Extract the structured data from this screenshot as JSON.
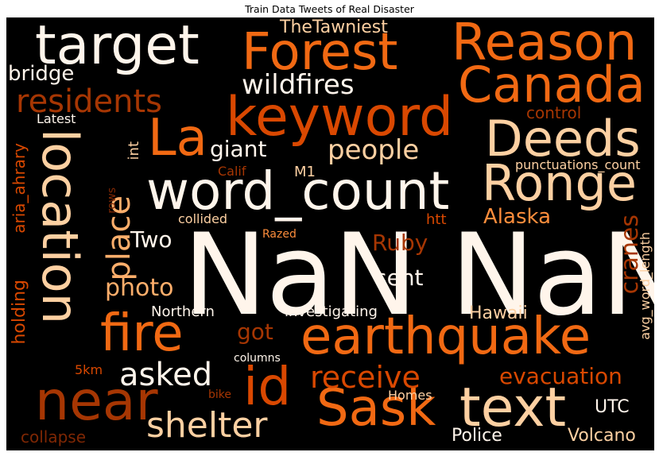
{
  "title": "Train Data Tweets of Real Disaster",
  "palette": {
    "lightest": "#fff5eb",
    "light": "#fdd0a2",
    "mid_light": "#fdae6b",
    "mid": "#fd8d3c",
    "orange": "#f16913",
    "dark_orange": "#d94801",
    "brown": "#a63603",
    "dark_brown": "#7f2704",
    "background": "#000000"
  },
  "words": {
    "nan_nan": "NaN NaN",
    "word_count": "word_count",
    "location": "location",
    "earthquake": "earthquake",
    "keyword": "keyword",
    "forest": "Forest",
    "reason": "Reason",
    "canada": "Canada",
    "target": "target",
    "deeds": "Deeds",
    "ronge": "Ronge",
    "text": "text",
    "near": "near",
    "sask": "Sask",
    "fire": "fire",
    "id": "id",
    "la": "La",
    "shelter": "shelter",
    "asked": "asked",
    "receive": "receive",
    "residents": "residents",
    "wildfires": "wildfires",
    "people": "people",
    "place": "place",
    "photo": "photo",
    "evacuation": "evacuation",
    "thetawniest": "TheTawniest",
    "bridge": "bridge",
    "giant": "giant",
    "alaska": "Alaska",
    "ruby": "Ruby",
    "sent": "sent",
    "two": "Two",
    "cranes": "cranes",
    "aria_ahrary": "aria_ahrary",
    "holding": "holding",
    "hawaii": "Hawaii",
    "got": "got",
    "northern": "Northern",
    "investigating": "investigating",
    "police": "Police",
    "volcano": "Volcano",
    "utc": "UTC",
    "collapse": "collapse",
    "homes": "Homes",
    "latest": "Latest",
    "control": "control",
    "punctuations_count": "punctuations_count",
    "avg_word_length": "avg_word_length",
    "calif": "Calif",
    "m1": "M1",
    "int": "int",
    "rows": "rows",
    "collided": "collided",
    "htt": "htt",
    "razed": "Razed",
    "5km": "5km",
    "columns": "columns",
    "bike": "bike"
  }
}
